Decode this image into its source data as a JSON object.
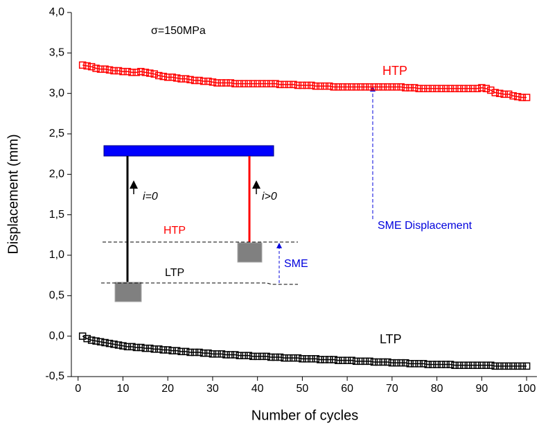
{
  "chart_data": {
    "type": "scatter",
    "x_label": "Number of cycles",
    "y_label": "Displacement (mm)",
    "x": [
      1,
      2,
      3,
      4,
      5,
      6,
      7,
      8,
      9,
      10,
      11,
      12,
      13,
      14,
      15,
      16,
      17,
      18,
      19,
      20,
      21,
      22,
      23,
      24,
      25,
      26,
      27,
      28,
      29,
      30,
      31,
      32,
      33,
      34,
      35,
      36,
      37,
      38,
      39,
      40,
      41,
      42,
      43,
      44,
      45,
      46,
      47,
      48,
      49,
      50,
      51,
      52,
      53,
      54,
      55,
      56,
      57,
      58,
      59,
      60,
      61,
      62,
      63,
      64,
      65,
      66,
      67,
      68,
      69,
      70,
      71,
      72,
      73,
      74,
      75,
      76,
      77,
      78,
      79,
      80,
      81,
      82,
      83,
      84,
      85,
      86,
      87,
      88,
      89,
      90,
      91,
      92,
      93,
      94,
      95,
      96,
      97,
      98,
      99,
      100
    ],
    "series": [
      {
        "name": "HTP",
        "color": "#ff0000",
        "values": [
          3.35,
          3.34,
          3.33,
          3.31,
          3.3,
          3.3,
          3.29,
          3.28,
          3.28,
          3.27,
          3.27,
          3.26,
          3.26,
          3.27,
          3.26,
          3.25,
          3.24,
          3.22,
          3.21,
          3.2,
          3.2,
          3.19,
          3.18,
          3.18,
          3.17,
          3.16,
          3.16,
          3.15,
          3.15,
          3.14,
          3.13,
          3.13,
          3.13,
          3.13,
          3.12,
          3.12,
          3.12,
          3.12,
          3.12,
          3.12,
          3.12,
          3.12,
          3.12,
          3.12,
          3.11,
          3.11,
          3.11,
          3.11,
          3.1,
          3.1,
          3.1,
          3.1,
          3.09,
          3.09,
          3.09,
          3.09,
          3.08,
          3.08,
          3.08,
          3.08,
          3.08,
          3.08,
          3.08,
          3.08,
          3.08,
          3.08,
          3.08,
          3.08,
          3.08,
          3.08,
          3.08,
          3.08,
          3.07,
          3.07,
          3.07,
          3.06,
          3.06,
          3.06,
          3.06,
          3.06,
          3.06,
          3.06,
          3.06,
          3.06,
          3.06,
          3.06,
          3.06,
          3.06,
          3.06,
          3.07,
          3.06,
          3.04,
          3.01,
          3.0,
          2.99,
          2.99,
          2.97,
          2.96,
          2.95,
          2.95
        ]
      },
      {
        "name": "LTP",
        "color": "#000000",
        "values": [
          0.0,
          -0.03,
          -0.05,
          -0.06,
          -0.07,
          -0.08,
          -0.09,
          -0.1,
          -0.11,
          -0.12,
          -0.13,
          -0.13,
          -0.14,
          -0.14,
          -0.15,
          -0.15,
          -0.16,
          -0.16,
          -0.17,
          -0.17,
          -0.18,
          -0.18,
          -0.19,
          -0.19,
          -0.2,
          -0.2,
          -0.2,
          -0.21,
          -0.21,
          -0.22,
          -0.22,
          -0.22,
          -0.23,
          -0.23,
          -0.23,
          -0.24,
          -0.24,
          -0.24,
          -0.25,
          -0.25,
          -0.25,
          -0.25,
          -0.26,
          -0.26,
          -0.26,
          -0.27,
          -0.27,
          -0.27,
          -0.27,
          -0.28,
          -0.28,
          -0.28,
          -0.28,
          -0.29,
          -0.29,
          -0.29,
          -0.29,
          -0.3,
          -0.3,
          -0.3,
          -0.3,
          -0.31,
          -0.31,
          -0.31,
          -0.31,
          -0.32,
          -0.32,
          -0.32,
          -0.32,
          -0.33,
          -0.33,
          -0.33,
          -0.33,
          -0.34,
          -0.34,
          -0.34,
          -0.34,
          -0.35,
          -0.35,
          -0.35,
          -0.35,
          -0.35,
          -0.35,
          -0.36,
          -0.36,
          -0.36,
          -0.36,
          -0.36,
          -0.36,
          -0.36,
          -0.36,
          -0.36,
          -0.37,
          -0.37,
          -0.37,
          -0.37,
          -0.37,
          -0.37,
          -0.37,
          -0.37
        ]
      }
    ],
    "xlim": [
      -1.5,
      102.3
    ],
    "ylim": [
      -0.5,
      4.0
    ],
    "xticks": [
      0,
      10,
      20,
      30,
      40,
      50,
      60,
      70,
      80,
      90,
      100
    ],
    "yticks": [
      {
        "value": -0.5,
        "label": "-0,5"
      },
      {
        "value": 0,
        "label": "0,0"
      },
      {
        "value": 0.5,
        "label": "0,5"
      },
      {
        "value": 1,
        "label": "1,0"
      },
      {
        "value": 1.5,
        "label": "1,5"
      },
      {
        "value": 2,
        "label": "2,0"
      },
      {
        "value": 2.5,
        "label": "2,5"
      },
      {
        "value": 3,
        "label": "3,0"
      },
      {
        "value": 3.5,
        "label": "3,5"
      },
      {
        "value": 4,
        "label": "4,0"
      }
    ],
    "annotations": [
      "σ=150MPa",
      "SME Displacement",
      "i=0",
      "i>0",
      "HTP",
      "LTP",
      "SME"
    ]
  }
}
